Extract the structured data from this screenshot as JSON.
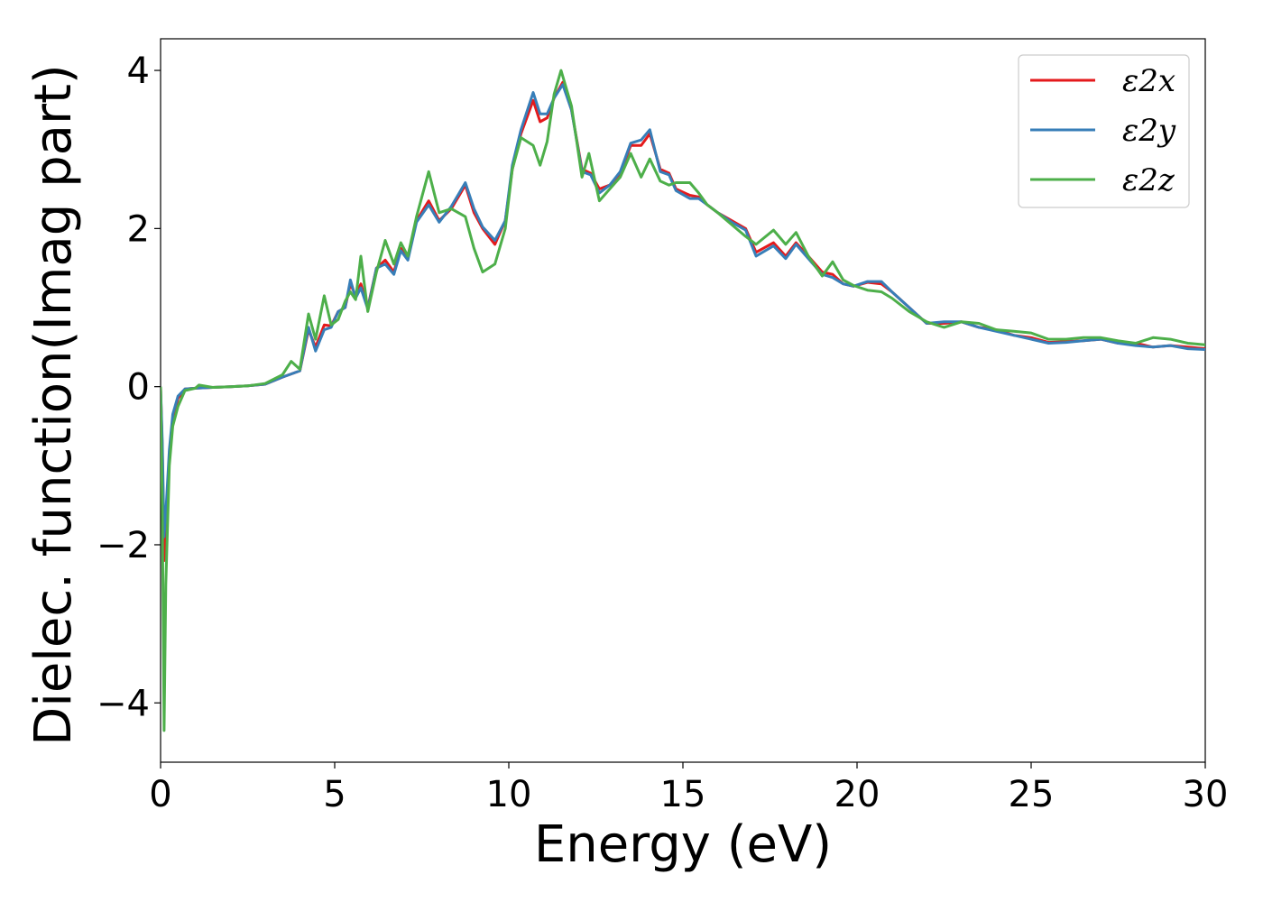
{
  "chart_data": {
    "type": "line",
    "xlabel": "Energy (eV)",
    "ylabel": "Dielec. function(Imag part)",
    "xlim": [
      0,
      30
    ],
    "ylim": [
      -4.75,
      4.4
    ],
    "xticks": [
      0,
      5,
      10,
      15,
      20,
      25,
      30
    ],
    "xtick_labels": [
      "0",
      "5",
      "10",
      "15",
      "20",
      "25",
      "30"
    ],
    "yticks": [
      -4,
      -2,
      0,
      2,
      4
    ],
    "ytick_labels": [
      "−4",
      "−2",
      "0",
      "2",
      "4"
    ],
    "grid": false,
    "legend_position": "top-right",
    "series": [
      {
        "name": "ε2x",
        "color": "#e41a1c",
        "points": [
          [
            0.0,
            0.0
          ],
          [
            0.05,
            -0.8
          ],
          [
            0.1,
            -2.2
          ],
          [
            0.15,
            -1.9
          ],
          [
            0.25,
            -0.9
          ],
          [
            0.35,
            -0.4
          ],
          [
            0.5,
            -0.15
          ],
          [
            0.7,
            -0.03
          ],
          [
            1.0,
            -0.02
          ],
          [
            1.5,
            -0.01
          ],
          [
            2.0,
            0.0
          ],
          [
            2.5,
            0.01
          ],
          [
            3.0,
            0.03
          ],
          [
            3.5,
            0.12
          ],
          [
            4.0,
            0.2
          ],
          [
            4.25,
            0.72
          ],
          [
            4.45,
            0.5
          ],
          [
            4.7,
            0.78
          ],
          [
            4.9,
            0.77
          ],
          [
            5.1,
            0.95
          ],
          [
            5.3,
            1.0
          ],
          [
            5.45,
            1.3
          ],
          [
            5.6,
            1.15
          ],
          [
            5.75,
            1.3
          ],
          [
            5.95,
            1.0
          ],
          [
            6.2,
            1.5
          ],
          [
            6.45,
            1.6
          ],
          [
            6.7,
            1.45
          ],
          [
            6.9,
            1.75
          ],
          [
            7.1,
            1.62
          ],
          [
            7.35,
            2.1
          ],
          [
            7.7,
            2.35
          ],
          [
            8.0,
            2.1
          ],
          [
            8.35,
            2.25
          ],
          [
            8.75,
            2.55
          ],
          [
            9.0,
            2.2
          ],
          [
            9.25,
            2.0
          ],
          [
            9.6,
            1.8
          ],
          [
            9.9,
            2.1
          ],
          [
            10.1,
            2.75
          ],
          [
            10.35,
            3.2
          ],
          [
            10.7,
            3.62
          ],
          [
            10.9,
            3.35
          ],
          [
            11.1,
            3.4
          ],
          [
            11.3,
            3.65
          ],
          [
            11.55,
            3.85
          ],
          [
            11.8,
            3.5
          ],
          [
            12.1,
            2.75
          ],
          [
            12.35,
            2.7
          ],
          [
            12.6,
            2.5
          ],
          [
            12.9,
            2.55
          ],
          [
            13.2,
            2.7
          ],
          [
            13.5,
            3.05
          ],
          [
            13.8,
            3.05
          ],
          [
            14.05,
            3.2
          ],
          [
            14.35,
            2.75
          ],
          [
            14.6,
            2.7
          ],
          [
            14.8,
            2.5
          ],
          [
            15.2,
            2.42
          ],
          [
            15.45,
            2.4
          ],
          [
            15.7,
            2.3
          ],
          [
            16.0,
            2.2
          ],
          [
            16.4,
            2.1
          ],
          [
            16.8,
            2.0
          ],
          [
            17.1,
            1.7
          ],
          [
            17.6,
            1.82
          ],
          [
            17.95,
            1.65
          ],
          [
            18.25,
            1.82
          ],
          [
            18.6,
            1.65
          ],
          [
            19.0,
            1.45
          ],
          [
            19.3,
            1.42
          ],
          [
            19.6,
            1.3
          ],
          [
            19.9,
            1.27
          ],
          [
            20.3,
            1.32
          ],
          [
            20.7,
            1.3
          ],
          [
            21.0,
            1.2
          ],
          [
            21.5,
            1.0
          ],
          [
            22.0,
            0.8
          ],
          [
            22.5,
            0.8
          ],
          [
            23.0,
            0.82
          ],
          [
            23.5,
            0.75
          ],
          [
            24.0,
            0.72
          ],
          [
            24.5,
            0.65
          ],
          [
            25.0,
            0.62
          ],
          [
            25.5,
            0.56
          ],
          [
            26.0,
            0.57
          ],
          [
            26.5,
            0.58
          ],
          [
            27.0,
            0.6
          ],
          [
            27.5,
            0.55
          ],
          [
            28.0,
            0.55
          ],
          [
            28.5,
            0.5
          ],
          [
            29.0,
            0.52
          ],
          [
            29.5,
            0.5
          ],
          [
            30.0,
            0.48
          ]
        ]
      },
      {
        "name": "ε2y",
        "color": "#377eb8",
        "points": [
          [
            0.0,
            0.0
          ],
          [
            0.05,
            -0.7
          ],
          [
            0.1,
            -1.9
          ],
          [
            0.15,
            -1.6
          ],
          [
            0.25,
            -0.8
          ],
          [
            0.35,
            -0.35
          ],
          [
            0.5,
            -0.12
          ],
          [
            0.7,
            -0.03
          ],
          [
            1.0,
            -0.02
          ],
          [
            1.5,
            -0.01
          ],
          [
            2.0,
            0.0
          ],
          [
            2.5,
            0.01
          ],
          [
            3.0,
            0.03
          ],
          [
            3.5,
            0.12
          ],
          [
            4.0,
            0.2
          ],
          [
            4.25,
            0.75
          ],
          [
            4.45,
            0.45
          ],
          [
            4.7,
            0.72
          ],
          [
            4.9,
            0.75
          ],
          [
            5.1,
            0.95
          ],
          [
            5.3,
            1.0
          ],
          [
            5.45,
            1.35
          ],
          [
            5.6,
            1.12
          ],
          [
            5.75,
            1.25
          ],
          [
            5.95,
            0.98
          ],
          [
            6.2,
            1.5
          ],
          [
            6.45,
            1.55
          ],
          [
            6.7,
            1.42
          ],
          [
            6.9,
            1.72
          ],
          [
            7.1,
            1.6
          ],
          [
            7.35,
            2.08
          ],
          [
            7.7,
            2.3
          ],
          [
            8.0,
            2.08
          ],
          [
            8.35,
            2.28
          ],
          [
            8.75,
            2.58
          ],
          [
            9.0,
            2.25
          ],
          [
            9.25,
            2.02
          ],
          [
            9.6,
            1.85
          ],
          [
            9.9,
            2.1
          ],
          [
            10.1,
            2.8
          ],
          [
            10.35,
            3.25
          ],
          [
            10.7,
            3.72
          ],
          [
            10.9,
            3.45
          ],
          [
            11.1,
            3.45
          ],
          [
            11.3,
            3.65
          ],
          [
            11.55,
            3.82
          ],
          [
            11.8,
            3.5
          ],
          [
            12.1,
            2.72
          ],
          [
            12.35,
            2.68
          ],
          [
            12.6,
            2.45
          ],
          [
            12.9,
            2.55
          ],
          [
            13.2,
            2.72
          ],
          [
            13.5,
            3.08
          ],
          [
            13.8,
            3.12
          ],
          [
            14.05,
            3.25
          ],
          [
            14.35,
            2.72
          ],
          [
            14.6,
            2.68
          ],
          [
            14.8,
            2.48
          ],
          [
            15.2,
            2.38
          ],
          [
            15.45,
            2.38
          ],
          [
            15.7,
            2.3
          ],
          [
            16.0,
            2.2
          ],
          [
            16.4,
            2.08
          ],
          [
            16.8,
            1.98
          ],
          [
            17.1,
            1.65
          ],
          [
            17.6,
            1.78
          ],
          [
            17.95,
            1.62
          ],
          [
            18.25,
            1.8
          ],
          [
            18.6,
            1.62
          ],
          [
            19.0,
            1.42
          ],
          [
            19.3,
            1.38
          ],
          [
            19.6,
            1.3
          ],
          [
            19.9,
            1.27
          ],
          [
            20.3,
            1.33
          ],
          [
            20.7,
            1.33
          ],
          [
            21.0,
            1.2
          ],
          [
            21.5,
            1.0
          ],
          [
            22.0,
            0.8
          ],
          [
            22.5,
            0.82
          ],
          [
            23.0,
            0.82
          ],
          [
            23.5,
            0.75
          ],
          [
            24.0,
            0.7
          ],
          [
            24.5,
            0.65
          ],
          [
            25.0,
            0.6
          ],
          [
            25.5,
            0.55
          ],
          [
            26.0,
            0.56
          ],
          [
            26.5,
            0.58
          ],
          [
            27.0,
            0.6
          ],
          [
            27.5,
            0.55
          ],
          [
            28.0,
            0.52
          ],
          [
            28.5,
            0.5
          ],
          [
            29.0,
            0.52
          ],
          [
            29.5,
            0.48
          ],
          [
            30.0,
            0.47
          ]
        ]
      },
      {
        "name": "ε2z",
        "color": "#4daf4a",
        "points": [
          [
            0.0,
            0.0
          ],
          [
            0.05,
            -1.5
          ],
          [
            0.1,
            -4.35
          ],
          [
            0.15,
            -2.5
          ],
          [
            0.25,
            -1.0
          ],
          [
            0.35,
            -0.5
          ],
          [
            0.5,
            -0.25
          ],
          [
            0.7,
            -0.05
          ],
          [
            1.0,
            -0.02
          ],
          [
            1.1,
            0.02
          ],
          [
            1.5,
            -0.01
          ],
          [
            2.0,
            0.0
          ],
          [
            2.5,
            0.01
          ],
          [
            3.0,
            0.04
          ],
          [
            3.5,
            0.15
          ],
          [
            3.75,
            0.32
          ],
          [
            4.0,
            0.22
          ],
          [
            4.25,
            0.92
          ],
          [
            4.45,
            0.6
          ],
          [
            4.7,
            1.15
          ],
          [
            4.9,
            0.78
          ],
          [
            5.1,
            0.85
          ],
          [
            5.3,
            1.08
          ],
          [
            5.45,
            1.2
          ],
          [
            5.6,
            1.1
          ],
          [
            5.75,
            1.65
          ],
          [
            5.95,
            0.95
          ],
          [
            6.2,
            1.45
          ],
          [
            6.45,
            1.85
          ],
          [
            6.7,
            1.55
          ],
          [
            6.9,
            1.82
          ],
          [
            7.1,
            1.65
          ],
          [
            7.35,
            2.15
          ],
          [
            7.7,
            2.72
          ],
          [
            8.0,
            2.2
          ],
          [
            8.35,
            2.25
          ],
          [
            8.75,
            2.15
          ],
          [
            9.0,
            1.75
          ],
          [
            9.25,
            1.45
          ],
          [
            9.6,
            1.55
          ],
          [
            9.9,
            2.0
          ],
          [
            10.1,
            2.75
          ],
          [
            10.35,
            3.15
          ],
          [
            10.7,
            3.05
          ],
          [
            10.9,
            2.8
          ],
          [
            11.1,
            3.1
          ],
          [
            11.3,
            3.7
          ],
          [
            11.5,
            4.0
          ],
          [
            11.8,
            3.55
          ],
          [
            12.1,
            2.65
          ],
          [
            12.3,
            2.95
          ],
          [
            12.6,
            2.35
          ],
          [
            12.9,
            2.5
          ],
          [
            13.2,
            2.65
          ],
          [
            13.5,
            2.95
          ],
          [
            13.8,
            2.65
          ],
          [
            14.05,
            2.88
          ],
          [
            14.35,
            2.6
          ],
          [
            14.6,
            2.55
          ],
          [
            14.8,
            2.58
          ],
          [
            15.2,
            2.58
          ],
          [
            15.45,
            2.45
          ],
          [
            15.7,
            2.3
          ],
          [
            16.0,
            2.2
          ],
          [
            16.4,
            2.05
          ],
          [
            16.8,
            1.9
          ],
          [
            17.1,
            1.8
          ],
          [
            17.6,
            1.98
          ],
          [
            17.95,
            1.8
          ],
          [
            18.25,
            1.95
          ],
          [
            18.6,
            1.65
          ],
          [
            19.0,
            1.4
          ],
          [
            19.3,
            1.58
          ],
          [
            19.6,
            1.35
          ],
          [
            19.9,
            1.28
          ],
          [
            20.3,
            1.22
          ],
          [
            20.7,
            1.2
          ],
          [
            21.0,
            1.12
          ],
          [
            21.5,
            0.95
          ],
          [
            22.0,
            0.82
          ],
          [
            22.5,
            0.75
          ],
          [
            23.0,
            0.82
          ],
          [
            23.5,
            0.8
          ],
          [
            24.0,
            0.72
          ],
          [
            24.5,
            0.7
          ],
          [
            25.0,
            0.68
          ],
          [
            25.5,
            0.6
          ],
          [
            26.0,
            0.6
          ],
          [
            26.5,
            0.62
          ],
          [
            27.0,
            0.62
          ],
          [
            27.5,
            0.58
          ],
          [
            28.0,
            0.55
          ],
          [
            28.5,
            0.62
          ],
          [
            29.0,
            0.6
          ],
          [
            29.5,
            0.55
          ],
          [
            30.0,
            0.53
          ]
        ]
      }
    ]
  }
}
